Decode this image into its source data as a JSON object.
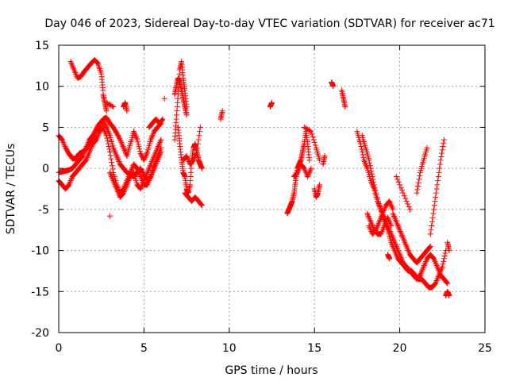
{
  "chart_data": {
    "type": "scatter",
    "title": "Day 046 of 2023, Sidereal Day-to-day VTEC variation (SDTVAR) for receiver ac71",
    "xlabel": "GPS time / hours",
    "ylabel": "SDTVAR / TECUs",
    "xlim": [
      0,
      25
    ],
    "ylim": [
      -20,
      15
    ],
    "x_ticks": [
      0,
      5,
      10,
      15,
      20,
      25
    ],
    "y_ticks": [
      -20,
      -15,
      -10,
      -5,
      0,
      5,
      10,
      15
    ],
    "x_tick_labels": [
      "0",
      "5",
      "10",
      "15",
      "20",
      "25"
    ],
    "y_tick_labels": [
      "-20",
      "-15",
      "-10",
      "-5",
      "0",
      "5",
      "10",
      "15"
    ],
    "grid": true,
    "marker": "+",
    "color": "#ff0000",
    "series": [
      {
        "name": "SDTVAR",
        "segments": [
          {
            "x": [
              0.0,
              0.2,
              0.4,
              0.6,
              0.8,
              1.0,
              1.2,
              1.4,
              1.6,
              1.8,
              2.0,
              2.2,
              2.4,
              2.6,
              2.8,
              3.0,
              3.2,
              3.4,
              3.6,
              3.8,
              4.0,
              4.2,
              4.4,
              4.6,
              4.8,
              5.0,
              5.2,
              5.4,
              5.6,
              5.8,
              6.0
            ],
            "y": [
              4.0,
              3.5,
              2.5,
              1.8,
              1.2,
              1.2,
              1.8,
              2.0,
              2.3,
              3.0,
              3.6,
              4.5,
              5.2,
              6.0,
              6.2,
              5.5,
              5.0,
              4.3,
              3.5,
              2.5,
              1.5,
              3.0,
              4.5,
              3.5,
              1.8,
              1.0,
              2.0,
              3.5,
              4.5,
              5.0,
              5.5
            ]
          },
          {
            "x": [
              0.0,
              0.2,
              0.4,
              0.6,
              0.8,
              1.0,
              1.2,
              1.4,
              1.6,
              1.8,
              2.0,
              2.2,
              2.4,
              2.6,
              2.8,
              3.0,
              3.2,
              3.4,
              3.6,
              3.8,
              4.0,
              4.2,
              4.4,
              4.6,
              4.8,
              5.0,
              5.2,
              5.4,
              5.6,
              5.8,
              6.0
            ],
            "y": [
              -0.5,
              -0.4,
              -0.3,
              -0.2,
              0.0,
              0.5,
              1.0,
              1.5,
              2.5,
              3.5,
              4.0,
              4.8,
              5.5,
              5.8,
              5.0,
              4.0,
              2.5,
              1.5,
              0.5,
              0.0,
              -0.5,
              -0.8,
              -1.0,
              -0.5,
              0.0,
              -0.8,
              -1.5,
              -1.0,
              0.0,
              1.0,
              2.0
            ]
          },
          {
            "x": [
              0.0,
              0.2,
              0.4,
              0.6,
              0.8,
              1.0,
              1.2,
              1.4,
              1.6,
              1.8,
              2.0,
              2.2,
              2.4,
              2.6,
              2.8,
              3.0,
              3.2,
              3.4,
              3.6,
              3.8,
              4.0,
              4.2,
              4.4,
              4.6,
              4.8,
              5.0,
              5.2,
              5.4,
              5.6,
              5.8,
              6.0
            ],
            "y": [
              -1.5,
              -2.0,
              -2.5,
              -2.0,
              -1.0,
              -0.5,
              0.0,
              0.5,
              1.0,
              2.0,
              3.0,
              3.5,
              4.5,
              5.0,
              4.0,
              2.0,
              -0.5,
              -2.0,
              -3.0,
              -2.5,
              -1.5,
              -0.5,
              0.5,
              0.0,
              -1.0,
              -2.0,
              -2.0,
              -1.0,
              0.5,
              1.5,
              2.5
            ]
          },
          {
            "x": [
              0.7,
              0.9,
              1.1,
              1.3,
              1.5,
              1.7,
              1.9,
              2.1,
              2.3,
              2.5,
              2.6
            ],
            "y": [
              13.0,
              12.0,
              11.0,
              11.2,
              11.8,
              12.3,
              12.8,
              13.2,
              12.8,
              11.5,
              9.5
            ]
          },
          {
            "x": [
              2.6,
              2.7,
              2.8
            ],
            "y": [
              9.0,
              8.0,
              7.0
            ]
          },
          {
            "x": [
              3.0,
              3.2,
              3.4,
              3.6,
              3.8,
              4.0,
              4.2,
              4.4,
              4.6,
              4.8,
              5.0,
              5.2,
              5.4,
              5.6,
              5.8,
              6.0
            ],
            "y": [
              -0.5,
              -1.5,
              -2.5,
              -3.5,
              -3.0,
              -2.0,
              -1.0,
              -0.5,
              -2.0,
              -2.5,
              -1.5,
              -0.5,
              0.5,
              1.5,
              2.5,
              3.5
            ]
          },
          {
            "x": [
              3.8,
              3.9,
              4.0
            ],
            "y": [
              7.5,
              8.0,
              7.0
            ]
          },
          {
            "x": [
              5.3,
              5.5,
              5.7,
              5.9,
              6.1
            ],
            "y": [
              5.0,
              5.5,
              6.0,
              5.5,
              6.0
            ]
          },
          {
            "x": [
              6.2
            ],
            "y": [
              8.5
            ]
          },
          {
            "x": [
              6.8,
              6.9,
              7.0,
              7.1,
              7.2,
              7.3,
              7.4,
              7.5
            ],
            "y": [
              3.5,
              6.0,
              9.0,
              12.0,
              13.0,
              11.0,
              9.5,
              7.5
            ]
          },
          {
            "x": [
              6.8,
              6.9,
              7.0,
              7.1,
              7.2,
              7.3,
              7.4,
              7.5
            ],
            "y": [
              9.0,
              10.0,
              11.0,
              10.5,
              9.5,
              8.5,
              7.5,
              6.5
            ]
          },
          {
            "x": [
              7.0,
              7.1,
              7.2,
              7.3,
              7.4,
              7.5,
              7.6,
              7.7,
              7.8,
              7.9,
              8.0,
              8.1,
              8.2,
              8.3,
              8.4
            ],
            "y": [
              5.0,
              3.0,
              1.0,
              -0.5,
              -1.0,
              -2.5,
              -3.0,
              -2.0,
              1.0,
              2.5,
              3.0,
              2.0,
              1.0,
              0.5,
              0.0
            ]
          },
          {
            "x": [
              7.4,
              7.6,
              7.8,
              8.0,
              8.2,
              8.4
            ],
            "y": [
              -3.0,
              -3.5,
              -4.0,
              -3.5,
              -4.0,
              -4.5
            ]
          },
          {
            "x": [
              7.3,
              7.5,
              7.7,
              7.9,
              8.1,
              8.3
            ],
            "y": [
              1.0,
              1.5,
              0.5,
              1.0,
              2.0,
              5.0
            ]
          },
          {
            "x": [
              9.5,
              9.6
            ],
            "y": [
              6.0,
              7.0
            ]
          },
          {
            "x": [
              12.4,
              12.5
            ],
            "y": [
              7.5,
              8.0
            ]
          },
          {
            "x": [
              13.4,
              13.5,
              13.6,
              13.7,
              13.8,
              13.9,
              14.0,
              14.1,
              14.2,
              14.3,
              14.4,
              14.5,
              14.6,
              14.7
            ],
            "y": [
              -5.5,
              -5.0,
              -4.5,
              -4.0,
              -3.0,
              -1.5,
              0.0,
              0.5,
              1.0,
              2.0,
              3.0,
              4.5,
              3.0,
              1.0
            ]
          },
          {
            "x": [
              13.8,
              14.0,
              14.2,
              14.4,
              14.6,
              14.8
            ],
            "y": [
              -1.0,
              -0.5,
              0.5,
              0.0,
              -1.0,
              0.0
            ]
          },
          {
            "x": [
              14.4,
              14.8,
              15.1,
              15.3
            ],
            "y": [
              5.0,
              4.5,
              2.5,
              1.0
            ]
          },
          {
            "x": [
              15.0,
              15.1,
              15.2,
              15.3
            ],
            "y": [
              -2.5,
              -3.5,
              -3.0,
              -2.0
            ]
          },
          {
            "x": [
              15.5,
              15.6
            ],
            "y": [
              0.5,
              1.5
            ]
          },
          {
            "x": [
              16.0,
              16.1
            ],
            "y": [
              10.5,
              10.0
            ]
          },
          {
            "x": [
              16.6,
              16.7,
              16.8
            ],
            "y": [
              9.5,
              8.5,
              7.5
            ]
          },
          {
            "x": [
              17.5,
              17.7,
              17.9,
              18.1,
              18.3,
              18.5,
              18.7,
              18.9,
              19.1,
              19.3,
              19.5,
              19.7,
              19.9,
              20.1,
              20.3,
              20.5,
              20.7,
              20.9,
              21.1,
              21.3,
              21.5,
              21.7,
              21.9,
              22.1,
              22.3,
              22.5,
              22.7
            ],
            "y": [
              4.5,
              3.0,
              1.0,
              0.0,
              -1.5,
              -2.5,
              -4.0,
              -5.0,
              -6.5,
              -7.5,
              -9.0,
              -10.0,
              -11.0,
              -11.5,
              -12.0,
              -12.5,
              -12.5,
              -13.0,
              -13.5,
              -13.5,
              -14.0,
              -14.5,
              -14.5,
              -14.0,
              -13.0,
              -12.0,
              -10.0
            ]
          },
          {
            "x": [
              17.8,
              18.0,
              18.2,
              18.4,
              18.6,
              18.8,
              19.0,
              19.2,
              19.4,
              19.6,
              19.8,
              20.0,
              20.2,
              20.4,
              20.6,
              20.8,
              21.0,
              21.2,
              21.4,
              21.6,
              21.8,
              22.0,
              22.2,
              22.4,
              22.6,
              22.8
            ],
            "y": [
              4.0,
              2.5,
              1.0,
              -1.0,
              -3.0,
              -4.5,
              -5.5,
              -6.5,
              -7.5,
              -8.5,
              -9.5,
              -10.5,
              -11.5,
              -12.0,
              -12.5,
              -13.0,
              -13.5,
              -13.0,
              -12.0,
              -11.0,
              -10.5,
              -11.0,
              -12.0,
              -13.0,
              -13.5,
              -14.0
            ]
          },
          {
            "x": [
              18.1,
              18.3,
              18.5,
              18.7,
              18.9,
              19.1,
              19.3,
              19.5
            ],
            "y": [
              -5.5,
              -6.5,
              -7.5,
              -8.0,
              -8.0,
              -7.0,
              -6.0,
              -7.0
            ]
          },
          {
            "x": [
              18.2,
              18.4,
              18.6,
              18.8,
              19.0,
              19.2,
              19.4,
              19.6
            ],
            "y": [
              -7.0,
              -8.0,
              -7.5,
              -6.5,
              -5.5,
              -4.5,
              -4.0,
              -5.0
            ]
          },
          {
            "x": [
              19.6,
              19.8,
              20.0,
              20.2,
              20.4,
              20.6,
              20.8,
              21.0,
              21.2,
              21.4,
              21.6,
              21.8
            ],
            "y": [
              -5.5,
              -6.5,
              -7.5,
              -8.5,
              -9.5,
              -10.5,
              -11.0,
              -11.5,
              -11.0,
              -10.5,
              -10.0,
              -9.5
            ]
          },
          {
            "x": [
              19.8,
              20.2,
              20.6
            ],
            "y": [
              -1.0,
              -3.0,
              -5.0
            ]
          },
          {
            "x": [
              21.0,
              21.2,
              21.4,
              21.6
            ],
            "y": [
              -3.0,
              -0.5,
              1.0,
              2.5
            ]
          },
          {
            "x": [
              21.8,
              22.0,
              22.2,
              22.4,
              22.6
            ],
            "y": [
              -8.0,
              -5.0,
              -2.0,
              1.0,
              3.5
            ]
          },
          {
            "x": [
              22.7,
              22.8,
              22.9
            ],
            "y": [
              -15.5,
              -15.0,
              -15.5
            ]
          },
          {
            "x": [
              22.8,
              22.9
            ],
            "y": [
              -9.0,
              -10.0
            ]
          },
          {
            "x": [
              19.3,
              19.4
            ],
            "y": [
              -10.5,
              -11.0
            ]
          },
          {
            "x": [
              3.0
            ],
            "y": [
              -5.8
            ]
          },
          {
            "x": [
              2.8,
              3.2
            ],
            "y": [
              8.0,
              7.5
            ]
          }
        ]
      }
    ]
  }
}
